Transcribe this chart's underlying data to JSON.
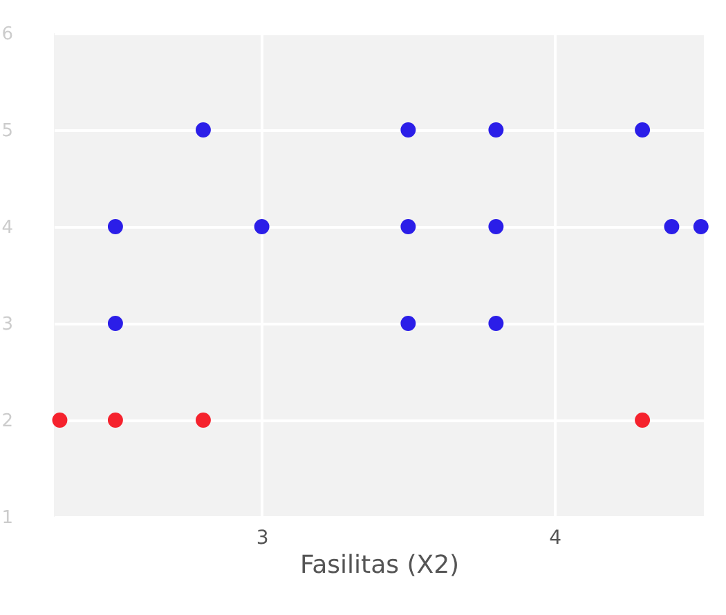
{
  "chart_data": {
    "type": "scatter",
    "xlabel": "Fasilitas (X2)",
    "xlim": [
      2.29,
      4.51
    ],
    "xticks": [
      3,
      4
    ],
    "ylim": [
      1,
      6
    ],
    "yticks": [
      1,
      2,
      3,
      4,
      5,
      6
    ],
    "grid": true,
    "marker": "circle",
    "series": [
      {
        "color": "#f5222d",
        "x": [
          2.31,
          2.5,
          2.8,
          4.3
        ],
        "values": [
          2,
          2,
          2,
          2
        ]
      },
      {
        "color": "#2b1ee8",
        "x": [
          2.8,
          2.5,
          2.5,
          3,
          3.5,
          3.5,
          3.5,
          3.8,
          3.8,
          3.8,
          4.3,
          4.4,
          4.5
        ],
        "values": [
          5,
          4,
          3,
          4,
          5,
          4,
          3,
          5,
          4,
          3,
          5,
          4,
          4
        ]
      }
    ]
  }
}
